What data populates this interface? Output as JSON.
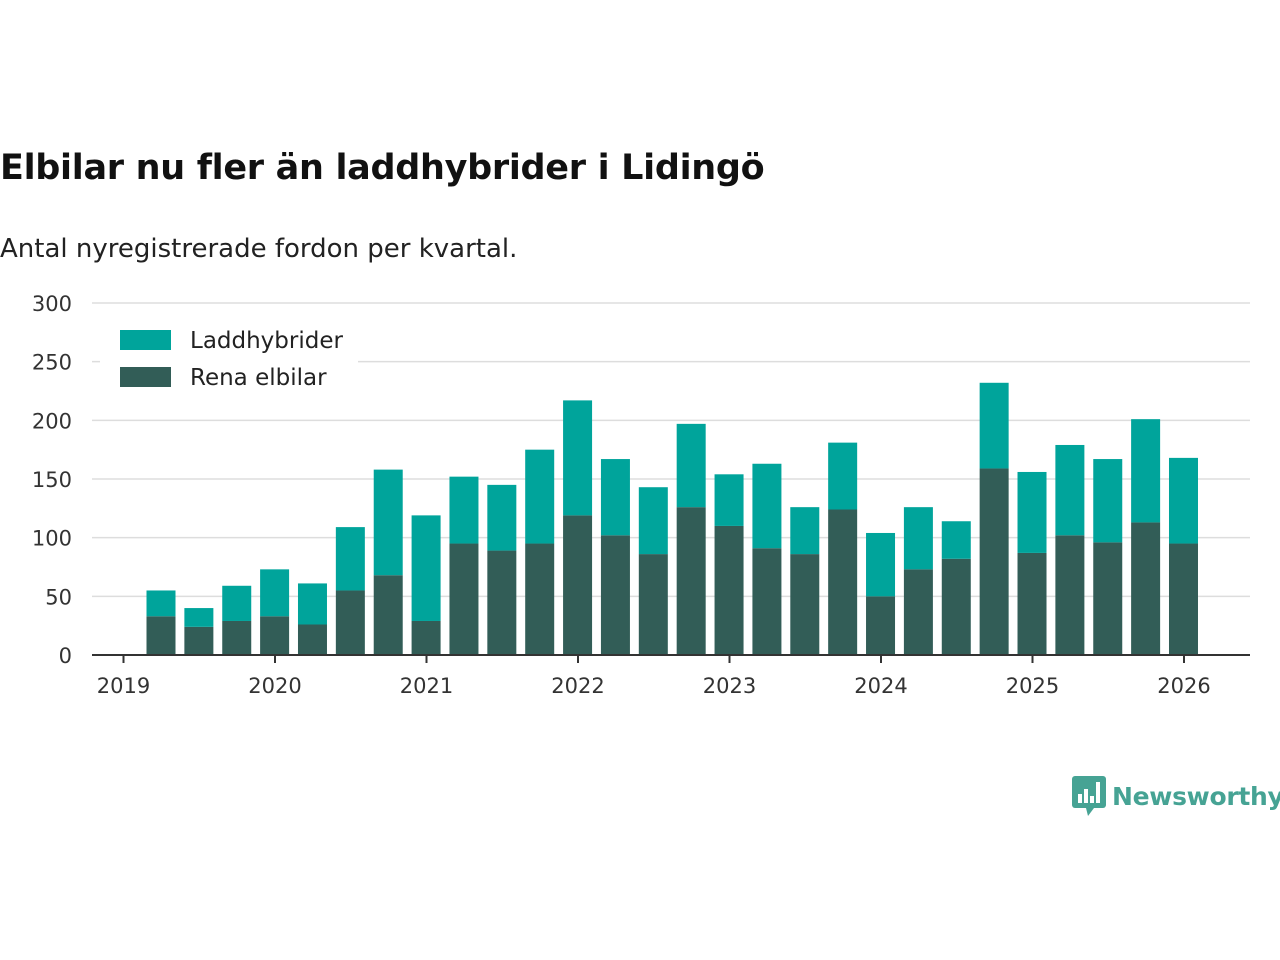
{
  "title": "Elbilar nu fler än laddhybrider i Lidingö",
  "subtitle": "Antal nyregistrerade fordon per kvartal.",
  "brand": {
    "name": "Newsworthy",
    "icon": "newsworthy-logo-icon",
    "color": "#46a394"
  },
  "chart_data": {
    "type": "bar",
    "stacked": true,
    "title": "Elbilar nu fler än laddhybrider i Lidingö",
    "subtitle": "Antal nyregistrerade fordon per kvartal.",
    "xlabel": "",
    "ylabel": "",
    "ylim": [
      0,
      300
    ],
    "yticks": [
      0,
      50,
      100,
      150,
      200,
      250,
      300
    ],
    "xticks": [
      "2019",
      "2020",
      "2021",
      "2022",
      "2023",
      "2024",
      "2025",
      "2026"
    ],
    "grid": true,
    "legend_position": "top-left",
    "categories": [
      "2019 Q1",
      "2019 Q2",
      "2019 Q3",
      "2019 Q4",
      "2020 Q1",
      "2020 Q2",
      "2020 Q3",
      "2020 Q4",
      "2021 Q1",
      "2021 Q2",
      "2021 Q3",
      "2021 Q4",
      "2022 Q1",
      "2022 Q2",
      "2022 Q3",
      "2022 Q4",
      "2023 Q1",
      "2023 Q2",
      "2023 Q3",
      "2023 Q4",
      "2024 Q1",
      "2024 Q2",
      "2024 Q3",
      "2024 Q4",
      "2025 Q1",
      "2025 Q2",
      "2025 Q3",
      "2025 Q4"
    ],
    "series": [
      {
        "name": "Rena elbilar",
        "color": "#325d57",
        "values": [
          33,
          24,
          29,
          33,
          26,
          55,
          68,
          29,
          95,
          89,
          95,
          119,
          102,
          86,
          126,
          110,
          91,
          86,
          124,
          50,
          73,
          82,
          159,
          87,
          102,
          96,
          113,
          95
        ]
      },
      {
        "name": "Laddhybrider",
        "color": "#00a49b",
        "values": [
          22,
          16,
          30,
          40,
          35,
          54,
          90,
          90,
          57,
          56,
          80,
          98,
          65,
          57,
          71,
          44,
          72,
          40,
          57,
          54,
          53,
          32,
          73,
          69,
          77,
          71,
          88,
          73
        ]
      }
    ],
    "legend": [
      "Laddhybrider",
      "Rena elbilar"
    ]
  }
}
